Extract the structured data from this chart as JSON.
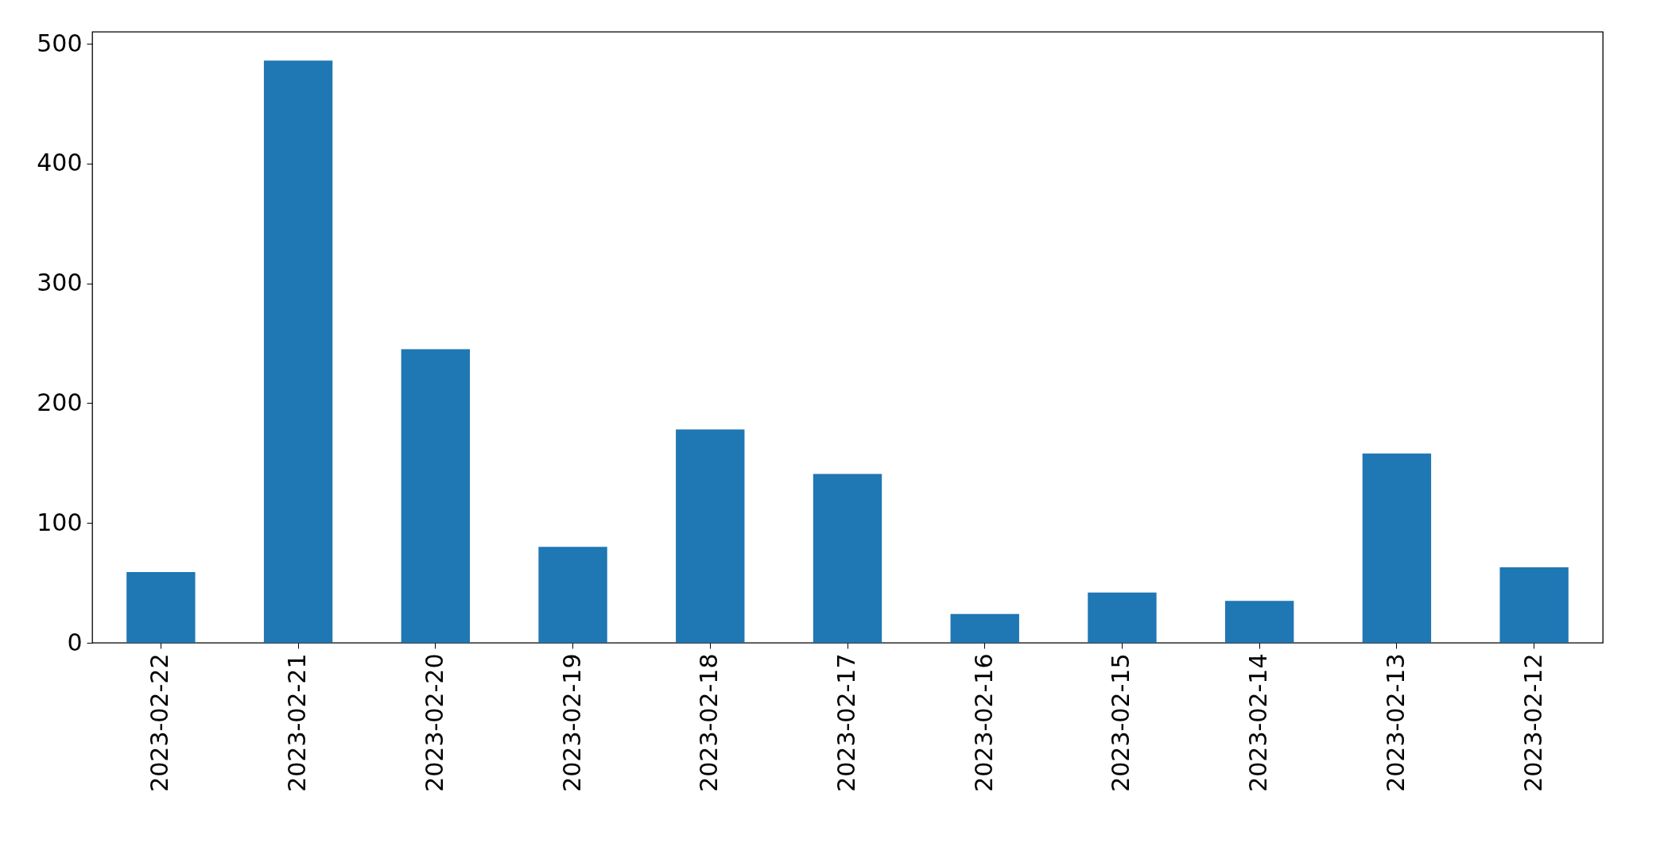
{
  "chart_data": {
    "type": "bar",
    "categories": [
      "2023-02-22",
      "2023-02-21",
      "2023-02-20",
      "2023-02-19",
      "2023-02-18",
      "2023-02-17",
      "2023-02-16",
      "2023-02-15",
      "2023-02-14",
      "2023-02-13",
      "2023-02-12"
    ],
    "values": [
      59,
      486,
      245,
      80,
      178,
      141,
      24,
      42,
      35,
      158,
      63
    ],
    "color": "#1f77b4",
    "ylim": [
      0,
      510
    ],
    "yticks": [
      0,
      100,
      200,
      300,
      400,
      500
    ],
    "grid": false
  }
}
